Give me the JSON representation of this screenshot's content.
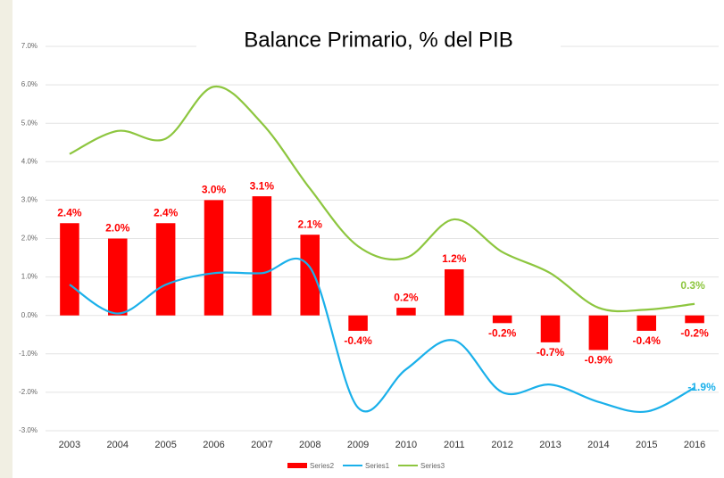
{
  "chart_data": {
    "type": "combo",
    "title": "Balance Primario, % del PIB",
    "categories": [
      "2003",
      "2004",
      "2005",
      "2006",
      "2007",
      "2008",
      "2009",
      "2010",
      "2011",
      "2012",
      "2013",
      "2014",
      "2015",
      "2016"
    ],
    "series": [
      {
        "name": "Series2",
        "kind": "bar",
        "color": "#ff0000",
        "values": [
          2.4,
          2.0,
          2.4,
          3.0,
          3.1,
          2.1,
          -0.4,
          0.2,
          1.2,
          -0.2,
          -0.7,
          -0.9,
          -0.4,
          -0.2
        ],
        "value_labels": [
          "2.4%",
          "2.0%",
          "2.4%",
          "3.0%",
          "3.1%",
          "2.1%",
          "-0.4%",
          "0.2%",
          "1.2%",
          "-0.2%",
          "-0.7%",
          "-0.9%",
          "-0.4%",
          "-0.2%"
        ]
      },
      {
        "name": "Series1",
        "kind": "line",
        "color": "#1ab0ea",
        "values": [
          0.8,
          0.05,
          0.8,
          1.1,
          1.1,
          1.25,
          -2.4,
          -1.4,
          -0.65,
          -2.0,
          -1.8,
          -2.25,
          -2.5,
          -1.88
        ],
        "value_labels": [
          null,
          null,
          null,
          null,
          null,
          null,
          null,
          null,
          null,
          null,
          null,
          null,
          null,
          "-1.9%"
        ]
      },
      {
        "name": "Series3",
        "kind": "line",
        "color": "#8dc63f",
        "values": [
          4.2,
          4.8,
          4.6,
          5.95,
          5.0,
          3.3,
          1.8,
          1.5,
          2.5,
          1.65,
          1.1,
          0.2,
          0.15,
          0.3
        ],
        "value_labels": [
          null,
          null,
          null,
          null,
          null,
          null,
          null,
          null,
          null,
          null,
          null,
          null,
          null,
          "0.3%"
        ]
      }
    ],
    "ylim": [
      -3,
      7
    ],
    "yticks": [
      {
        "value": -3,
        "label": "-3.0%"
      },
      {
        "value": -2,
        "label": "-2.0%"
      },
      {
        "value": -1,
        "label": "-1.0%"
      },
      {
        "value": 0,
        "label": "0.0%"
      },
      {
        "value": 1,
        "label": "1.0%"
      },
      {
        "value": 2,
        "label": "2.0%"
      },
      {
        "value": 3,
        "label": "3.0%"
      },
      {
        "value": 4,
        "label": "4.0%"
      },
      {
        "value": 5,
        "label": "5.0%"
      },
      {
        "value": 6,
        "label": "6.0%"
      },
      {
        "value": 7,
        "label": "7.0%"
      }
    ],
    "grid": true,
    "legend": "bottom",
    "smooth": true
  }
}
